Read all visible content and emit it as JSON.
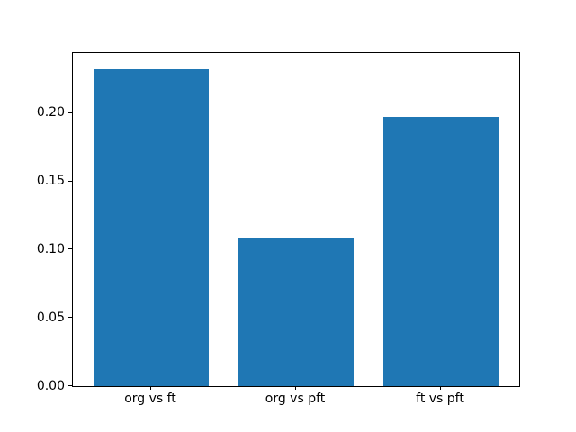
{
  "chart_data": {
    "type": "bar",
    "categories": [
      "org vs ft",
      "org vs pft",
      "ft vs pft"
    ],
    "values": [
      0.232,
      0.109,
      0.197
    ],
    "title": "",
    "xlabel": "",
    "ylabel": "",
    "ylim": [
      0,
      0.244
    ],
    "xlim": [
      -0.54,
      2.54
    ],
    "yticks": [
      0.0,
      0.05,
      0.1,
      0.15,
      0.2
    ],
    "ytick_labels": [
      "0.00",
      "0.05",
      "0.10",
      "0.15",
      "0.20"
    ],
    "bar_width_fraction": 0.8,
    "bar_color": "#1f77b4",
    "background_color": "#ffffff",
    "spine_color": "#000000",
    "grid": false,
    "legend": null
  }
}
